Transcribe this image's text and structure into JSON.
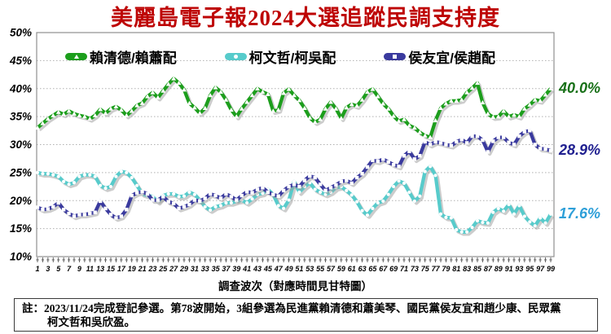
{
  "title": "美麗島電子報2024大選追蹤民調支持度",
  "x_axis_title": "調查波次（對應時間見甘特圖）",
  "note": {
    "line1": "註：2023/11/24完成登記參選。第78波開始，3組參選為民進黨賴清德和蕭美琴、國民黨侯友宜和趙少康、民眾黨",
    "line2": "柯文哲和吳欣盈。"
  },
  "chart_data": {
    "type": "line",
    "title": "美麗島電子報2024大選追蹤民調支持度",
    "xlabel": "調查波次（對應時間見甘特圖）",
    "ylabel": "",
    "grid": "horizontal-dotted",
    "legend_position": "top-inside",
    "ylim": [
      10,
      50
    ],
    "y_tick_step": 5,
    "y_ticks": [
      "10%",
      "15%",
      "20%",
      "25%",
      "30%",
      "35%",
      "40%",
      "45%",
      "50%"
    ],
    "x_first": 1,
    "x_last": 99,
    "x_ticks": [
      1,
      3,
      5,
      7,
      9,
      11,
      13,
      15,
      17,
      19,
      21,
      23,
      25,
      27,
      29,
      31,
      33,
      35,
      37,
      39,
      41,
      43,
      45,
      47,
      49,
      51,
      53,
      55,
      57,
      59,
      61,
      63,
      65,
      67,
      69,
      71,
      73,
      75,
      77,
      79,
      81,
      83,
      85,
      87,
      89,
      91,
      93,
      95,
      97,
      99
    ],
    "series": [
      {
        "key": "lai",
        "name": "賴清德/賴蕭配",
        "color": "#1C9E1C",
        "label_color": "#187018",
        "marker": "triangle",
        "end_label": "40.0%",
        "values": [
          33.0,
          33.8,
          34.6,
          35.2,
          35.8,
          35.4,
          36.0,
          35.5,
          35.2,
          35.0,
          34.6,
          35.2,
          36.3,
          35.6,
          36.4,
          36.8,
          36.2,
          35.2,
          36.0,
          37.0,
          37.4,
          38.6,
          39.3,
          38.4,
          39.6,
          40.8,
          41.8,
          41.0,
          39.8,
          37.4,
          36.6,
          35.6,
          36.5,
          38.8,
          40.2,
          39.4,
          38.0,
          36.2,
          35.0,
          36.4,
          37.6,
          38.8,
          40.0,
          39.4,
          39.0,
          36.0,
          36.2,
          39.2,
          39.9,
          38.8,
          37.9,
          36.5,
          34.8,
          34.0,
          34.5,
          36.4,
          37.6,
          36.4,
          34.7,
          36.6,
          37.2,
          36.9,
          38.0,
          39.4,
          39.9,
          38.6,
          37.3,
          36.4,
          35.1,
          34.2,
          34.5,
          33.4,
          33.0,
          32.2,
          31.6,
          31.3,
          34.3,
          36.5,
          37.3,
          37.8,
          37.8,
          38.0,
          39.3,
          40.1,
          41.0,
          37.5,
          35.5,
          34.9,
          35.0,
          36.0,
          35.0,
          35.3,
          35.0,
          36.4,
          37.1,
          38.0,
          37.8,
          38.9,
          40.0
        ]
      },
      {
        "key": "ko",
        "name": "柯文哲/柯吳配",
        "color": "#57CBCB",
        "label_color": "#2E9FD8",
        "marker": "circle",
        "end_label": "17.6%",
        "values": [
          25.0,
          24.8,
          24.8,
          24.6,
          24.3,
          23.4,
          22.9,
          23.2,
          24.3,
          24.6,
          24.6,
          24.3,
          22.7,
          22.2,
          22.5,
          24.3,
          25.2,
          25.0,
          24.1,
          22.7,
          21.2,
          20.9,
          20.7,
          19.8,
          20.9,
          21.2,
          21.2,
          20.7,
          20.8,
          21.5,
          21.1,
          20.1,
          18.9,
          18.3,
          18.9,
          19.1,
          19.6,
          19.6,
          19.9,
          20.1,
          19.6,
          20.3,
          21.1,
          21.3,
          22.0,
          21.1,
          19.1,
          18.6,
          20.1,
          23.4,
          21.5,
          22.5,
          23.2,
          22.0,
          21.5,
          21.1,
          21.5,
          22.3,
          22.5,
          21.8,
          21.0,
          19.8,
          18.2,
          17.4,
          18.6,
          19.6,
          19.9,
          21.1,
          22.5,
          23.5,
          23.1,
          21.5,
          19.9,
          20.8,
          25.2,
          26.1,
          24.5,
          17.6,
          17.0,
          16.9,
          14.8,
          14.4,
          14.4,
          15.2,
          16.4,
          16.1,
          16.0,
          17.9,
          18.6,
          18.1,
          19.3,
          17.6,
          19.1,
          17.2,
          16.2,
          15.5,
          16.9,
          16.0,
          17.6
        ]
      },
      {
        "key": "hou",
        "name": "侯友宜/侯趙配",
        "color": "#3A3A9E",
        "label_color": "#202090",
        "marker": "square",
        "end_label": "28.9%",
        "values": [
          18.8,
          18.4,
          18.5,
          18.9,
          19.6,
          18.4,
          17.7,
          17.2,
          17.5,
          17.5,
          17.7,
          17.9,
          19.9,
          18.6,
          17.5,
          16.9,
          17.2,
          18.4,
          20.9,
          21.4,
          21.6,
          21.2,
          20.1,
          20.1,
          20.7,
          19.8,
          19.5,
          18.6,
          18.9,
          19.3,
          20.1,
          19.9,
          20.4,
          21.2,
          20.9,
          20.4,
          21.2,
          20.7,
          20.1,
          20.9,
          21.6,
          21.4,
          22.0,
          22.3,
          21.5,
          21.1,
          20.8,
          21.8,
          22.5,
          22.9,
          22.5,
          23.6,
          24.4,
          24.1,
          22.9,
          21.8,
          22.3,
          22.8,
          23.4,
          23.6,
          23.1,
          24.1,
          24.8,
          26.0,
          27.2,
          27.0,
          27.4,
          26.9,
          26.4,
          26.1,
          28.0,
          28.8,
          27.4,
          28.0,
          30.5,
          30.0,
          30.5,
          30.3,
          30.0,
          29.8,
          30.5,
          30.9,
          30.3,
          31.5,
          31.5,
          30.8,
          28.7,
          30.6,
          31.3,
          31.3,
          30.4,
          30.0,
          31.5,
          32.3,
          32.5,
          30.0,
          29.3,
          29.2,
          28.9
        ]
      }
    ]
  }
}
